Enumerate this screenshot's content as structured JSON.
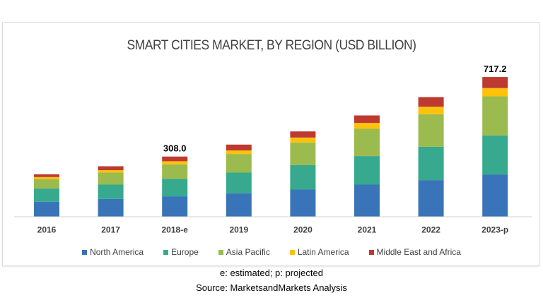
{
  "chart_data": {
    "type": "bar",
    "stacked": true,
    "title": "SMART CITIES MARKET, BY REGION (USD BILLION)",
    "categories": [
      "2016",
      "2017",
      "2018-e",
      "2019",
      "2020",
      "2021",
      "2022",
      "2023-p"
    ],
    "series": [
      {
        "name": "North America",
        "color": "#3a74b8",
        "values": [
          75.2,
          89.7,
          103.2,
          118.8,
          138.0,
          163.5,
          186.7,
          215.8
        ]
      },
      {
        "name": "Europe",
        "color": "#36a98f",
        "values": [
          67.9,
          73.8,
          89.7,
          106.4,
          126.0,
          146.8,
          171.8,
          200.9
        ]
      },
      {
        "name": "Asia Pacific",
        "color": "#9bbb4e",
        "values": [
          48.3,
          61.8,
          75.2,
          95.9,
          116.3,
          140.2,
          167.1,
          201.0
        ]
      },
      {
        "name": "Latin America",
        "color": "#fcc20c",
        "values": [
          10.9,
          12.4,
          15.6,
          18.2,
          25.4,
          30.5,
          38.9,
          42.5
        ]
      },
      {
        "name": "Middle East and Africa",
        "color": "#bd3a31",
        "values": [
          14.5,
          20.3,
          24.3,
          30.2,
          31.6,
          38.5,
          49.4,
          57.0
        ]
      }
    ],
    "data_labels": [
      {
        "category": "2018-e",
        "text": "308.0"
      },
      {
        "category": "2023-p",
        "text": "717.2"
      }
    ],
    "xlabel": "",
    "ylabel": "",
    "ylim": [
      0,
      760
    ],
    "grid": false,
    "y_axis_visible": false,
    "legend_position": "bottom"
  },
  "footnotes": {
    "abbrev": "e: estimated; p: projected",
    "source": "Source: MarketsandMarkets Analysis"
  }
}
